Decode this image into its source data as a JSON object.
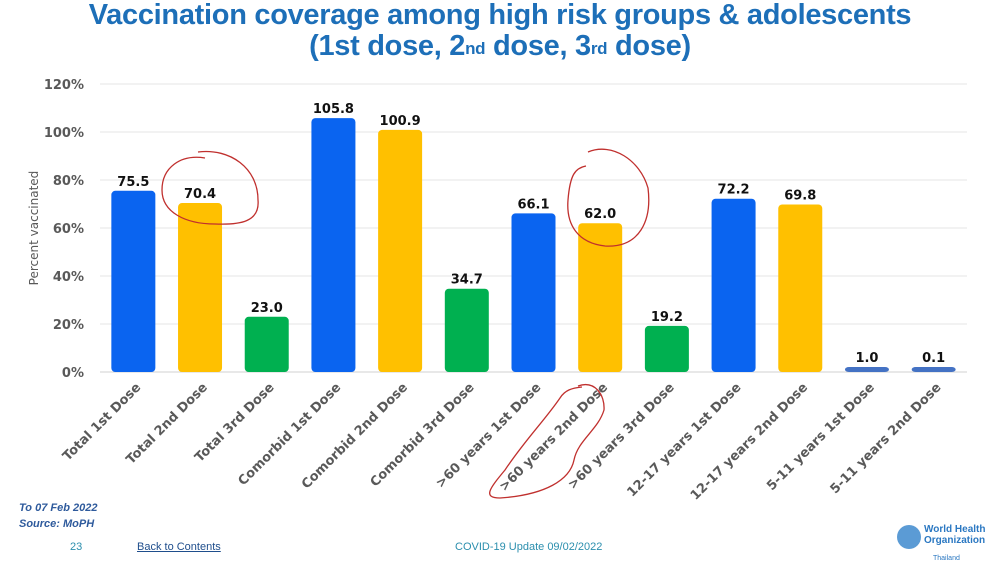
{
  "title": {
    "line1": "Vaccination coverage among high risk groups & adolescents",
    "line2_parts": [
      "(1st dose, 2",
      "nd",
      " dose, 3",
      "rd",
      " dose)"
    ]
  },
  "chart_data": {
    "type": "bar",
    "title": "Vaccination coverage among high risk groups & adolescents (1st dose, 2nd dose, 3rd dose)",
    "xlabel": "",
    "ylabel": "Percent vaccinated",
    "ylim": [
      0,
      120
    ],
    "yticks": [
      0,
      20,
      40,
      60,
      80,
      100,
      120
    ],
    "ytick_labels": [
      "0%",
      "20%",
      "40%",
      "60%",
      "80%",
      "100%",
      "120%"
    ],
    "grid": true,
    "legend": "none",
    "categories": [
      "Total 1st Dose",
      "Total 2nd Dose",
      "Total 3rd Dose",
      "Comorbid 1st Dose",
      "Comorbid 2nd Dose",
      "Comorbid 3rd Dose",
      ">60 years 1st Dose",
      ">60 years 2nd Dose",
      ">60 years 3rd Dose",
      "12-17 years 1st Dose",
      "12-17 years 2nd Dose",
      "5-11 years 1st Dose",
      "5-11 years 2nd Dose"
    ],
    "values": [
      75.5,
      70.4,
      23.0,
      105.8,
      100.9,
      34.7,
      66.1,
      62.0,
      19.2,
      72.2,
      69.8,
      1.0,
      0.1
    ],
    "data_labels": [
      "75.5",
      "70.4",
      "23.0",
      "105.8",
      "100.9",
      "34.7",
      "66.1",
      "62.0",
      "19.2",
      "72.2",
      "69.8",
      "1.0",
      "0.1"
    ],
    "bar_colors": [
      "#0a64f0",
      "#ffc000",
      "#00b050",
      "#0a64f0",
      "#ffc000",
      "#00b050",
      "#0a64f0",
      "#ffc000",
      "#00b050",
      "#0a64f0",
      "#ffc000",
      "#4472c4",
      "#4472c4"
    ],
    "annotations": [
      {
        "type": "hand-drawn circle",
        "target": "Total 2nd Dose",
        "color": "#c0302e"
      },
      {
        "type": "hand-drawn circle",
        "target": ">60 years 2nd Dose",
        "color": "#c0302e"
      },
      {
        "type": "hand-drawn circle",
        "target": ">60 years 2nd Dose label",
        "color": "#c0302e"
      }
    ]
  },
  "notes": {
    "date": "To 07 Feb 2022",
    "source": "Source: MoPH"
  },
  "footer": {
    "page_number": "23",
    "back_link": "Back to Contents",
    "center_text": "COVID-19 Update  09/02/2022"
  },
  "logo": {
    "line1": "World Health",
    "line2": "Organization",
    "country": "Thailand"
  }
}
